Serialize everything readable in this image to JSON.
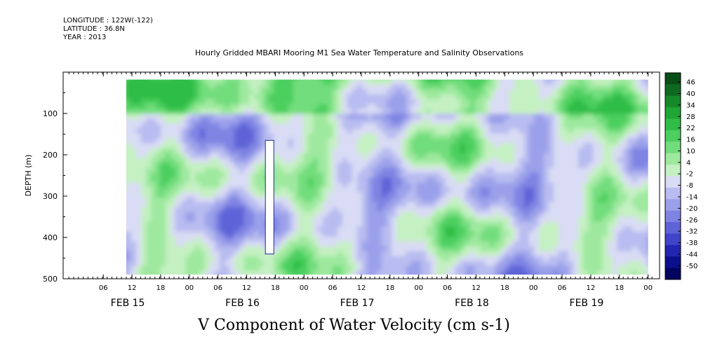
{
  "header": {
    "longitude": "LONGITUDE : 122W(-122)",
    "latitude": "LATITUDE : 36.8N",
    "year": "YEAR : 2013",
    "title": "Hourly Gridded MBARI Mooring M1 Sea Water Temperature and Salinity Observations"
  },
  "chart_data": {
    "type": "heatmap",
    "title": "Hourly Gridded MBARI Mooring M1 Sea Water Temperature and Salinity Observations",
    "variable": "V Component of Water Velocity (cm s-1)",
    "xlabel": "",
    "ylabel": "DEPTH (m)",
    "yticks": [
      100,
      200,
      300,
      400,
      500
    ],
    "ylim": [
      500,
      0
    ],
    "x_hour_ticks": [
      "06",
      "12",
      "18",
      "00",
      "06",
      "12",
      "18",
      "00",
      "06",
      "12",
      "18",
      "00",
      "06",
      "12",
      "18",
      "00",
      "06",
      "12",
      "18",
      "00"
    ],
    "x_day_labels": [
      "FEB 15",
      "FEB 16",
      "FEB 17",
      "FEB 18",
      "FEB 19"
    ],
    "colorbar": {
      "levels": [
        "46",
        "40",
        "34",
        "28",
        "22",
        "16",
        "10",
        "4",
        "-2",
        "-8",
        "-14",
        "-20",
        "-26",
        "-32",
        "-38",
        "-44",
        "-50"
      ],
      "colors": [
        "#0a4d16",
        "#0f6a20",
        "#168a2a",
        "#1fa636",
        "#2fbd47",
        "#4ccf5f",
        "#72dd7c",
        "#9ee99f",
        "#c5f0c2",
        "#d9dcf4",
        "#b8bcf0",
        "#9ba0ea",
        "#7f84e3",
        "#5f63d8",
        "#3f44c8",
        "#2226b0",
        "#0c0f8a",
        "#020460"
      ]
    },
    "data_range_days": [
      15.45,
      20.0
    ],
    "depth_range": [
      18,
      490
    ],
    "grid": false,
    "colorbar_position": "right"
  },
  "bottom_label": "V Component of Water Velocity (cm s-1)"
}
